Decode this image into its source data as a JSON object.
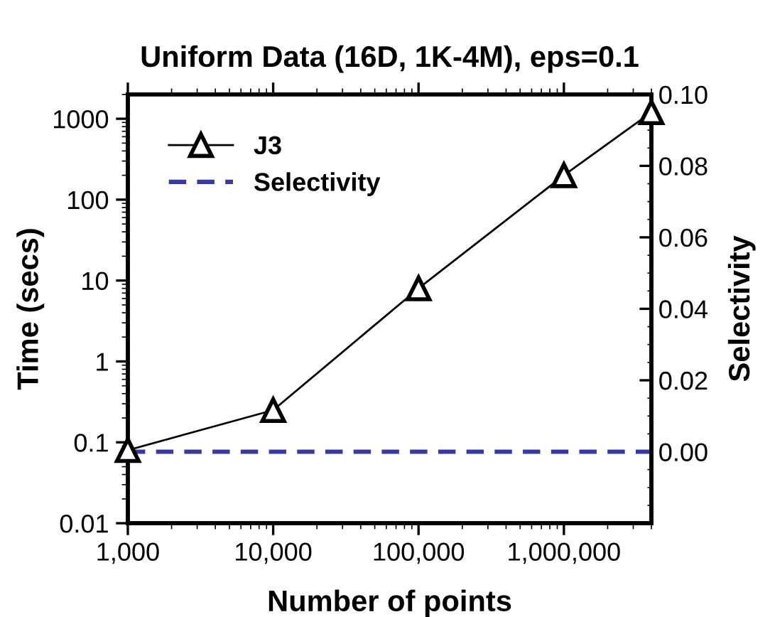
{
  "chart_data": {
    "type": "line",
    "title": "Uniform Data (16D, 1K-4M), eps=0.1",
    "xlabel": "Number of points",
    "ylabel": "Time (secs)",
    "y2label": "Selectivity",
    "x": [
      1000,
      10000,
      100000,
      1000000,
      4000000
    ],
    "series": [
      {
        "name": "J3",
        "color": "#000000",
        "values": [
          0.08,
          0.25,
          8,
          200,
          1200
        ],
        "marker": "triangle",
        "line_style": "solid"
      },
      {
        "name": "Selectivity",
        "color": "#3a3a9e",
        "values": [
          0,
          0,
          0,
          0,
          0
        ],
        "axis": "y2",
        "marker": "none",
        "line_style": "dashed"
      }
    ],
    "log": "xy",
    "xlim": [
      1000,
      4000000
    ],
    "xticks": [
      {
        "value": 1000,
        "label": "1,000"
      },
      {
        "value": 10000,
        "label": "10,000"
      },
      {
        "value": 100000,
        "label": "100,000"
      },
      {
        "value": 1000000,
        "label": "1,000,000"
      }
    ],
    "ylim": [
      0.01,
      2000
    ],
    "yticks": [
      0.01,
      0.1,
      1,
      10,
      100,
      1000
    ],
    "y2lim": [
      -0.02,
      0.1
    ],
    "y2ticks": [
      {
        "value": 0,
        "label": "0.00"
      },
      {
        "value": 0.02,
        "label": "0.02"
      },
      {
        "value": 0.04,
        "label": "0.04"
      },
      {
        "value": 0.06,
        "label": "0.06"
      },
      {
        "value": 0.08,
        "label": "0.08"
      },
      {
        "value": 0.1,
        "label": "0.10"
      }
    ],
    "grid": false,
    "legend": "top left"
  }
}
